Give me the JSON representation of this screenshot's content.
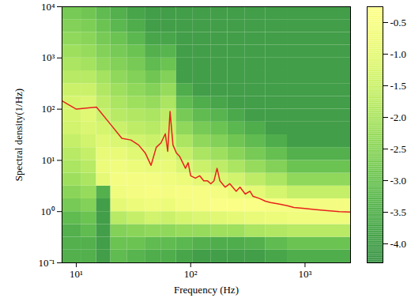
{
  "chart_data": {
    "type": "heatmap",
    "x_label": "Frequency (Hz)",
    "y_label": "Spectral density(1/Hz)",
    "log": true,
    "xlim": [
      7.5,
      2500
    ],
    "ylim": [
      0.1,
      10000
    ],
    "xticks": [
      {
        "value": 10,
        "label": "10¹"
      },
      {
        "value": 100,
        "label": "10²"
      },
      {
        "value": 1000,
        "label": "10³"
      }
    ],
    "yticks": [
      {
        "value": 0.1,
        "label": "10⁻¹"
      },
      {
        "value": 1,
        "label": "10⁰"
      },
      {
        "value": 10,
        "label": "10¹"
      },
      {
        "value": 100,
        "label": "10²"
      },
      {
        "value": 1000,
        "label": "10³"
      },
      {
        "value": 10000,
        "label": "10⁴"
      }
    ],
    "x_bins": [
      7.5,
      11,
      15,
      20,
      28,
      40,
      55,
      75,
      105,
      150,
      210,
      300,
      450,
      700,
      2500
    ],
    "y_bins": [
      0.1,
      0.178,
      0.316,
      0.562,
      1,
      1.78,
      3.16,
      5.62,
      10,
      17.8,
      31.6,
      56.2,
      100,
      178,
      316,
      562,
      1000,
      1780,
      3160,
      5620,
      10000
    ],
    "cells": [
      [
        -3.5,
        -3.5,
        -3.5,
        -3.2,
        -2.8,
        -2.5,
        -2.2,
        -2.0,
        -1.8,
        -1.6,
        -1.4,
        -1.3,
        -1.3,
        -1.5,
        -1.8,
        -2.0,
        -2.2,
        -2.4,
        -2.6,
        -2.8
      ],
      [
        -3.5,
        -3.5,
        -3.2,
        -3.0,
        -2.6,
        -2.3,
        -2.0,
        -1.8,
        -1.6,
        -1.4,
        -1.2,
        -1.1,
        -1.2,
        -1.5,
        -1.8,
        -2.1,
        -2.3,
        -2.5,
        -2.7,
        -2.9
      ],
      [
        -4.0,
        -4.0,
        -4.0,
        -4.0,
        -4.0,
        -3.5,
        -1.0,
        -0.8,
        -0.9,
        -1.1,
        -1.3,
        -1.5,
        -1.7,
        -1.9,
        -2.1,
        -2.4,
        -2.6,
        -2.8,
        -3.0,
        -3.2
      ],
      [
        -3.2,
        -3.0,
        -2.6,
        -1.8,
        -1.0,
        -0.7,
        -0.6,
        -0.7,
        -0.9,
        -1.2,
        -1.5,
        -1.8,
        -2.0,
        -2.2,
        -2.4,
        -2.6,
        -2.8,
        -3.0,
        -3.3,
        -3.5
      ],
      [
        -3.4,
        -3.0,
        -2.5,
        -1.6,
        -0.8,
        -0.6,
        -0.6,
        -0.8,
        -1.1,
        -1.4,
        -1.7,
        -1.9,
        -2.2,
        -2.4,
        -2.6,
        -2.8,
        -3.0,
        -3.3,
        -3.6,
        -3.8
      ],
      [
        -3.6,
        -3.2,
        -2.4,
        -1.4,
        -0.7,
        -0.5,
        -0.6,
        -0.9,
        -1.2,
        -1.5,
        -1.8,
        -2.0,
        -2.3,
        -2.6,
        -2.9,
        -3.2,
        -3.5,
        -3.8,
        -4.0,
        -4.0
      ],
      [
        -3.6,
        -3.2,
        -2.4,
        -1.5,
        -0.8,
        -0.6,
        -0.7,
        -0.9,
        -1.1,
        -1.3,
        -1.5,
        -1.7,
        -2.0,
        -2.3,
        -2.6,
        -3.0,
        -3.4,
        -3.8,
        -4.0,
        -4.0
      ],
      [
        -3.8,
        -3.3,
        -2.3,
        -1.3,
        -0.6,
        -0.5,
        -0.8,
        -1.2,
        -1.6,
        -2.0,
        -2.4,
        -2.8,
        -3.2,
        -3.6,
        -4.0,
        -4.0,
        -4.0,
        -4.0,
        -4.0,
        -4.0
      ],
      [
        -4.0,
        -3.5,
        -2.3,
        -1.2,
        -0.5,
        -0.5,
        -1.0,
        -1.5,
        -2.0,
        -2.4,
        -2.8,
        -3.2,
        -3.6,
        -4.0,
        -4.0,
        -4.0,
        -4.0,
        -4.0,
        -4.0,
        -4.0
      ],
      [
        -4.0,
        -3.6,
        -2.2,
        -1.1,
        -0.4,
        -0.6,
        -1.2,
        -1.7,
        -2.2,
        -2.6,
        -3.0,
        -3.4,
        -3.8,
        -4.0,
        -4.0,
        -4.0,
        -4.0,
        -4.0,
        -4.0,
        -4.0
      ],
      [
        -4.0,
        -3.6,
        -2.2,
        -1.0,
        -0.4,
        -0.8,
        -1.4,
        -2.0,
        -2.5,
        -2.9,
        -3.3,
        -3.7,
        -4.0,
        -4.0,
        -4.0,
        -4.0,
        -4.0,
        -4.0,
        -4.0,
        -4.0
      ],
      [
        -4.0,
        -3.5,
        -2.0,
        -0.9,
        -0.4,
        -1.0,
        -1.7,
        -2.3,
        -2.8,
        -3.2,
        -3.6,
        -4.0,
        -4.0,
        -4.0,
        -4.0,
        -4.0,
        -4.0,
        -4.0,
        -4.0,
        -4.0
      ],
      [
        -3.8,
        -3.2,
        -1.9,
        -0.8,
        -0.5,
        -1.3,
        -2.0,
        -2.6,
        -3.1,
        -3.6,
        -4.0,
        -4.0,
        -4.0,
        -4.0,
        -4.0,
        -4.0,
        -4.0,
        -4.0,
        -4.0,
        -4.0
      ],
      [
        -3.6,
        -3.0,
        -1.8,
        -0.7,
        -0.6,
        -1.6,
        -2.4,
        -3.0,
        -3.5,
        -4.0,
        -4.0,
        -4.0,
        -4.0,
        -4.0,
        -4.0,
        -4.0,
        -4.0,
        -4.0,
        -4.0,
        -4.0
      ]
    ],
    "zlim": [
      -4.3,
      -0.25
    ],
    "zticks": [
      {
        "value": -4,
        "label": "-4.0"
      },
      -3.5,
      {
        "value": -3,
        "label": "-3.0"
      },
      -2.5,
      {
        "value": -2,
        "label": "-2.0"
      },
      -1.5,
      {
        "value": -1,
        "label": "-1.0"
      },
      -0.5
    ],
    "series": [
      {
        "type": "line",
        "color": "#e8211d",
        "x": [
          7.5,
          10,
          15,
          20,
          25,
          30,
          35,
          40,
          45,
          50,
          55,
          60,
          63,
          66,
          70,
          75,
          80,
          90,
          95,
          100,
          110,
          120,
          130,
          140,
          150,
          160,
          170,
          180,
          200,
          220,
          250,
          270,
          300,
          330,
          350,
          400,
          450,
          500,
          600,
          700,
          800,
          1000,
          1200,
          1500,
          2000,
          2500
        ],
        "values": [
          145,
          100,
          110,
          50,
          27,
          25,
          20,
          14,
          8,
          18,
          22,
          33,
          15,
          90,
          20,
          14,
          12,
          7,
          9,
          5,
          4.5,
          5,
          4,
          4,
          3.5,
          4,
          7,
          4,
          3,
          3.5,
          2.5,
          3,
          2.2,
          2.5,
          2,
          1.8,
          1.6,
          1.5,
          1.4,
          1.3,
          1.2,
          1.15,
          1.1,
          1.05,
          1.0,
          0.98
        ]
      }
    ]
  }
}
